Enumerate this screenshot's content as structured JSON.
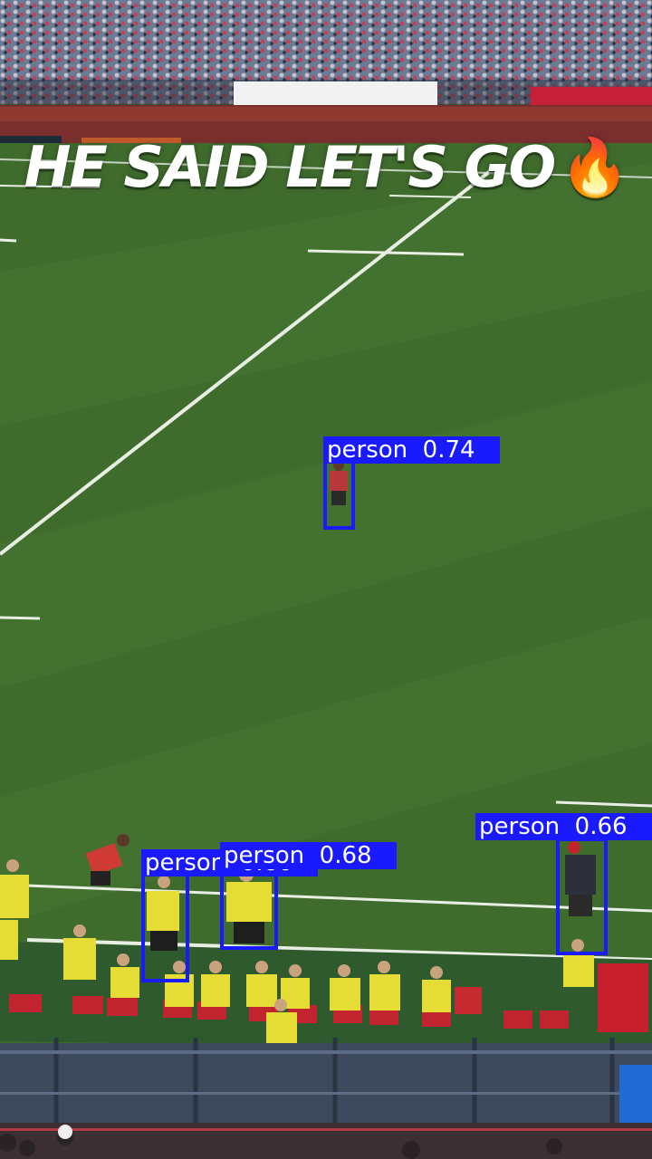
{
  "caption": {
    "text": "HE SAID LET'S GO",
    "emoji": "🔥"
  },
  "detections": [
    {
      "class": "person",
      "score": "0.74"
    },
    {
      "class": "person",
      "score": "0.66"
    },
    {
      "class": "person",
      "score": "0.68"
    },
    {
      "class": "person",
      "score": "0.60"
    }
  ],
  "colors": {
    "box": "#1a1aff",
    "pitch": "#3d6b2c"
  }
}
